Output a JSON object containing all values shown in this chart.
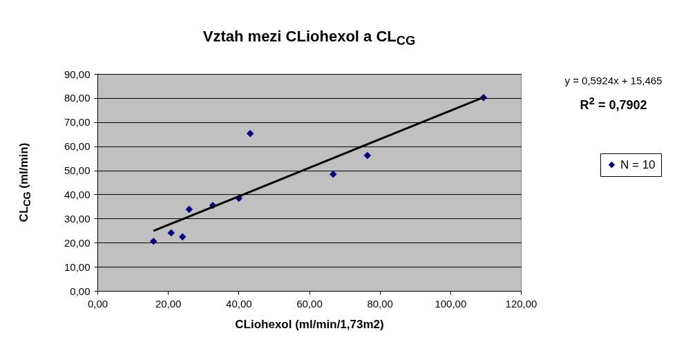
{
  "chart_data": {
    "type": "scatter",
    "title": "Vztah mezi CLiohexol a CL$_{CG}$",
    "xlabel": "CLiohexol (ml/min/1,73m2)",
    "ylabel": "CL$_{CG}$ (ml/min)",
    "xlim": [
      0,
      120
    ],
    "xticks": [
      {
        "value": 0,
        "label": "0,00"
      },
      {
        "value": 20,
        "label": "20,00"
      },
      {
        "value": 40,
        "label": "40,00"
      },
      {
        "value": 60,
        "label": "60,00"
      },
      {
        "value": 80,
        "label": "80,00"
      },
      {
        "value": 100,
        "label": "100,00"
      },
      {
        "value": 120,
        "label": "120,00"
      }
    ],
    "ylim": [
      0,
      90
    ],
    "yticks": [
      {
        "value": 0,
        "label": "0,00"
      },
      {
        "value": 10,
        "label": "10,00"
      },
      {
        "value": 20,
        "label": "20,00"
      },
      {
        "value": 30,
        "label": "30,00"
      },
      {
        "value": 40,
        "label": "40,00"
      },
      {
        "value": 50,
        "label": "50,00"
      },
      {
        "value": 60,
        "label": "60,00"
      },
      {
        "value": 70,
        "label": "70,00"
      },
      {
        "value": 80,
        "label": "80,00"
      },
      {
        "value": 90,
        "label": "90,00"
      }
    ],
    "grid": "y",
    "legend": "right",
    "marker": "diamond",
    "annotations": [
      "y = 0,5924x + 15,465",
      "R$^{2}$ = 0,7902"
    ],
    "series": [
      {
        "name": "N = 10",
        "color": "#000080",
        "x": [
          15.9,
          20.9,
          24.1,
          26.0,
          32.7,
          40.1,
          43.3,
          66.8,
          76.5,
          109.4
        ],
        "values": [
          20.6,
          24.1,
          22.4,
          33.8,
          35.5,
          38.4,
          65.3,
          48.4,
          56.2,
          80.2
        ]
      },
      {
        "type": "line",
        "color": "#000000",
        "line_style": "solid",
        "marker": "none",
        "x": [
          15.9,
          109.4
        ],
        "values": [
          24.9,
          80.3
        ]
      }
    ]
  }
}
